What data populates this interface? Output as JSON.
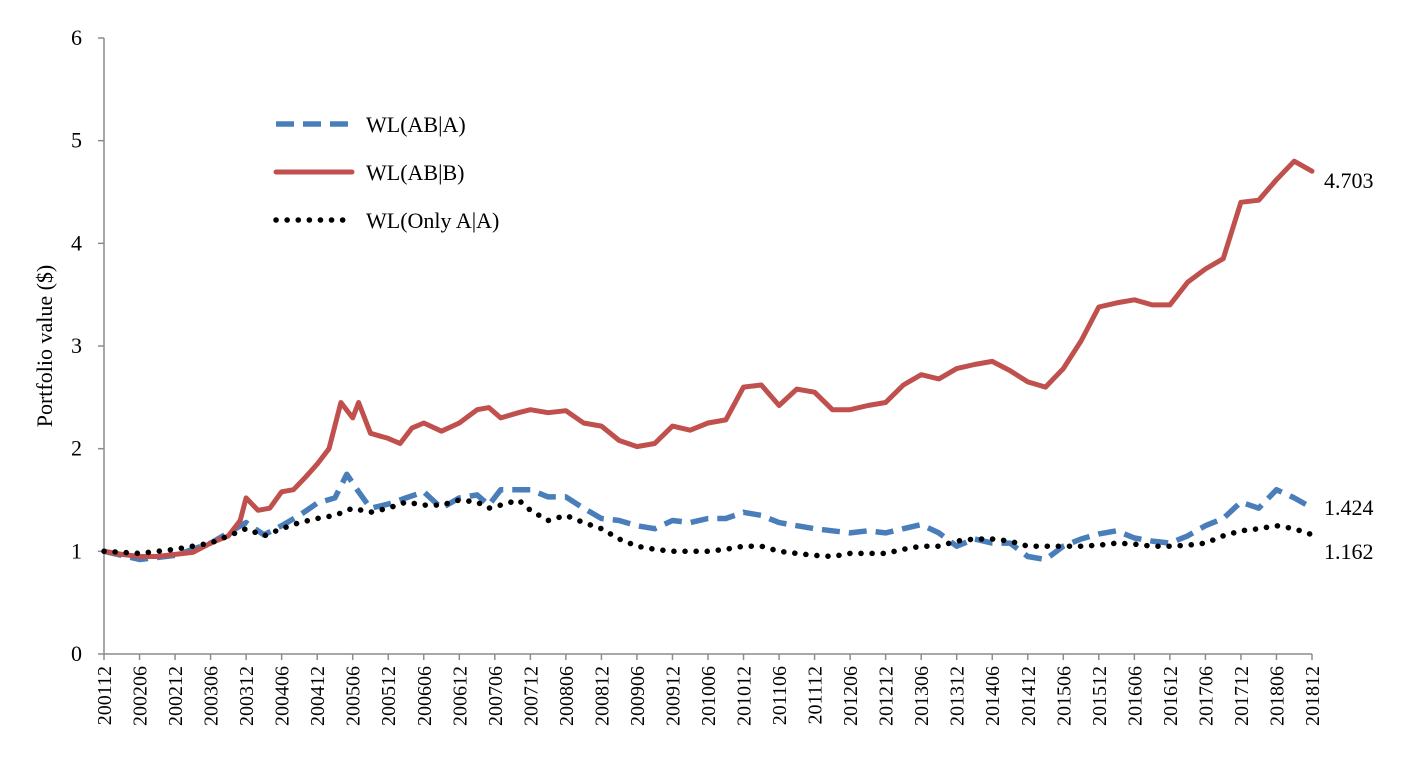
{
  "chart_data": {
    "type": "line",
    "ylabel": "Portfolio value ($)",
    "ylim": [
      0,
      6
    ],
    "yticks": [
      0,
      1,
      2,
      3,
      4,
      5,
      6
    ],
    "x_start": "200112",
    "x_end": "201812",
    "xticks": [
      "200112",
      "200206",
      "200212",
      "200306",
      "200312",
      "200406",
      "200412",
      "200506",
      "200512",
      "200606",
      "200612",
      "200706",
      "200712",
      "200806",
      "200812",
      "200906",
      "200912",
      "201006",
      "201012",
      "201106",
      "201112",
      "201206",
      "201212",
      "201306",
      "201312",
      "201406",
      "201412",
      "201506",
      "201512",
      "201606",
      "201612",
      "201706",
      "201712",
      "201806",
      "201812"
    ],
    "grid": false,
    "legend_position": "top-left",
    "series": [
      {
        "name": "WL(AB|A)",
        "color": "#4A7EBB",
        "style": "dashed",
        "end_label": "1.424",
        "points": [
          [
            "200112",
            1.0
          ],
          [
            "200206",
            0.92
          ],
          [
            "200212",
            0.96
          ],
          [
            "200306",
            1.08
          ],
          [
            "200312",
            1.28
          ],
          [
            "200403",
            1.16
          ],
          [
            "200406",
            1.25
          ],
          [
            "200409",
            1.35
          ],
          [
            "200412",
            1.47
          ],
          [
            "200503",
            1.52
          ],
          [
            "200505",
            1.75
          ],
          [
            "200507",
            1.58
          ],
          [
            "200509",
            1.42
          ],
          [
            "200512",
            1.46
          ],
          [
            "200603",
            1.52
          ],
          [
            "200606",
            1.58
          ],
          [
            "200609",
            1.42
          ],
          [
            "200612",
            1.52
          ],
          [
            "200703",
            1.55
          ],
          [
            "200705",
            1.45
          ],
          [
            "200707",
            1.6
          ],
          [
            "200709",
            1.6
          ],
          [
            "200712",
            1.6
          ],
          [
            "200803",
            1.53
          ],
          [
            "200806",
            1.53
          ],
          [
            "200809",
            1.42
          ],
          [
            "200812",
            1.32
          ],
          [
            "200903",
            1.3
          ],
          [
            "200906",
            1.25
          ],
          [
            "200909",
            1.22
          ],
          [
            "200912",
            1.3
          ],
          [
            "201003",
            1.28
          ],
          [
            "201006",
            1.32
          ],
          [
            "201009",
            1.32
          ],
          [
            "201012",
            1.38
          ],
          [
            "201103",
            1.35
          ],
          [
            "201106",
            1.28
          ],
          [
            "201109",
            1.25
          ],
          [
            "201112",
            1.22
          ],
          [
            "201203",
            1.2
          ],
          [
            "201206",
            1.18
          ],
          [
            "201209",
            1.2
          ],
          [
            "201212",
            1.18
          ],
          [
            "201303",
            1.22
          ],
          [
            "201306",
            1.26
          ],
          [
            "201309",
            1.18
          ],
          [
            "201312",
            1.05
          ],
          [
            "201403",
            1.12
          ],
          [
            "201406",
            1.08
          ],
          [
            "201409",
            1.08
          ],
          [
            "201412",
            0.95
          ],
          [
            "201503",
            0.92
          ],
          [
            "201506",
            1.05
          ],
          [
            "201509",
            1.12
          ],
          [
            "201512",
            1.17
          ],
          [
            "201603",
            1.2
          ],
          [
            "201606",
            1.13
          ],
          [
            "201609",
            1.1
          ],
          [
            "201612",
            1.08
          ],
          [
            "201703",
            1.15
          ],
          [
            "201706",
            1.25
          ],
          [
            "201709",
            1.32
          ],
          [
            "201712",
            1.48
          ],
          [
            "201803",
            1.42
          ],
          [
            "201806",
            1.6
          ],
          [
            "201809",
            1.52
          ],
          [
            "201812",
            1.424
          ]
        ]
      },
      {
        "name": "WL(AB|B)",
        "color": "#C0504D",
        "style": "solid",
        "end_label": "4.703",
        "points": [
          [
            "200112",
            1.0
          ],
          [
            "200203",
            0.97
          ],
          [
            "200206",
            0.95
          ],
          [
            "200209",
            0.95
          ],
          [
            "200212",
            0.97
          ],
          [
            "200303",
            0.99
          ],
          [
            "200306",
            1.08
          ],
          [
            "200309",
            1.15
          ],
          [
            "200311",
            1.3
          ],
          [
            "200312",
            1.52
          ],
          [
            "200402",
            1.4
          ],
          [
            "200404",
            1.42
          ],
          [
            "200406",
            1.58
          ],
          [
            "200408",
            1.6
          ],
          [
            "200410",
            1.72
          ],
          [
            "200412",
            1.85
          ],
          [
            "200502",
            2.0
          ],
          [
            "200504",
            2.45
          ],
          [
            "200506",
            2.3
          ],
          [
            "200507",
            2.45
          ],
          [
            "200509",
            2.15
          ],
          [
            "200512",
            2.1
          ],
          [
            "200602",
            2.05
          ],
          [
            "200604",
            2.2
          ],
          [
            "200606",
            2.25
          ],
          [
            "200609",
            2.17
          ],
          [
            "200612",
            2.25
          ],
          [
            "200703",
            2.38
          ],
          [
            "200705",
            2.4
          ],
          [
            "200707",
            2.3
          ],
          [
            "200710",
            2.35
          ],
          [
            "200712",
            2.38
          ],
          [
            "200803",
            2.35
          ],
          [
            "200806",
            2.37
          ],
          [
            "200809",
            2.25
          ],
          [
            "200812",
            2.22
          ],
          [
            "200903",
            2.08
          ],
          [
            "200906",
            2.02
          ],
          [
            "200909",
            2.05
          ],
          [
            "200912",
            2.22
          ],
          [
            "201003",
            2.18
          ],
          [
            "201006",
            2.25
          ],
          [
            "201009",
            2.28
          ],
          [
            "201012",
            2.6
          ],
          [
            "201103",
            2.62
          ],
          [
            "201106",
            2.42
          ],
          [
            "201109",
            2.58
          ],
          [
            "201112",
            2.55
          ],
          [
            "201203",
            2.38
          ],
          [
            "201206",
            2.38
          ],
          [
            "201209",
            2.42
          ],
          [
            "201212",
            2.45
          ],
          [
            "201303",
            2.62
          ],
          [
            "201306",
            2.72
          ],
          [
            "201309",
            2.68
          ],
          [
            "201312",
            2.78
          ],
          [
            "201403",
            2.82
          ],
          [
            "201406",
            2.85
          ],
          [
            "201409",
            2.76
          ],
          [
            "201412",
            2.65
          ],
          [
            "201503",
            2.6
          ],
          [
            "201506",
            2.78
          ],
          [
            "201509",
            3.05
          ],
          [
            "201512",
            3.38
          ],
          [
            "201603",
            3.42
          ],
          [
            "201606",
            3.45
          ],
          [
            "201609",
            3.4
          ],
          [
            "201612",
            3.4
          ],
          [
            "201703",
            3.62
          ],
          [
            "201706",
            3.75
          ],
          [
            "201709",
            3.85
          ],
          [
            "201712",
            4.4
          ],
          [
            "201803",
            4.42
          ],
          [
            "201806",
            4.62
          ],
          [
            "201809",
            4.8
          ],
          [
            "201812",
            4.703
          ]
        ]
      },
      {
        "name": "WL(Only A|A)",
        "color": "#000000",
        "style": "dotted",
        "end_label": "1.162",
        "points": [
          [
            "200112",
            1.0
          ],
          [
            "200206",
            0.98
          ],
          [
            "200212",
            1.02
          ],
          [
            "200306",
            1.08
          ],
          [
            "200312",
            1.22
          ],
          [
            "200403",
            1.15
          ],
          [
            "200406",
            1.22
          ],
          [
            "200409",
            1.28
          ],
          [
            "200412",
            1.32
          ],
          [
            "200503",
            1.35
          ],
          [
            "200506",
            1.42
          ],
          [
            "200509",
            1.38
          ],
          [
            "200512",
            1.42
          ],
          [
            "200603",
            1.48
          ],
          [
            "200606",
            1.45
          ],
          [
            "200609",
            1.45
          ],
          [
            "200612",
            1.5
          ],
          [
            "200703",
            1.48
          ],
          [
            "200705",
            1.42
          ],
          [
            "200707",
            1.45
          ],
          [
            "200710",
            1.5
          ],
          [
            "200712",
            1.4
          ],
          [
            "200803",
            1.3
          ],
          [
            "200806",
            1.35
          ],
          [
            "200809",
            1.28
          ],
          [
            "200812",
            1.22
          ],
          [
            "200903",
            1.12
          ],
          [
            "200906",
            1.05
          ],
          [
            "200909",
            1.02
          ],
          [
            "200912",
            1.0
          ],
          [
            "201003",
            1.0
          ],
          [
            "201006",
            1.0
          ],
          [
            "201009",
            1.02
          ],
          [
            "201012",
            1.05
          ],
          [
            "201103",
            1.05
          ],
          [
            "201106",
            1.0
          ],
          [
            "201109",
            0.98
          ],
          [
            "201112",
            0.96
          ],
          [
            "201203",
            0.95
          ],
          [
            "201206",
            0.98
          ],
          [
            "201209",
            0.98
          ],
          [
            "201212",
            0.98
          ],
          [
            "201303",
            1.02
          ],
          [
            "201306",
            1.05
          ],
          [
            "201309",
            1.05
          ],
          [
            "201312",
            1.1
          ],
          [
            "201403",
            1.12
          ],
          [
            "201406",
            1.12
          ],
          [
            "201409",
            1.1
          ],
          [
            "201412",
            1.05
          ],
          [
            "201503",
            1.05
          ],
          [
            "201506",
            1.05
          ],
          [
            "201509",
            1.05
          ],
          [
            "201512",
            1.06
          ],
          [
            "201603",
            1.08
          ],
          [
            "201606",
            1.07
          ],
          [
            "201609",
            1.05
          ],
          [
            "201612",
            1.05
          ],
          [
            "201703",
            1.06
          ],
          [
            "201706",
            1.08
          ],
          [
            "201709",
            1.15
          ],
          [
            "201712",
            1.2
          ],
          [
            "201803",
            1.22
          ],
          [
            "201806",
            1.25
          ],
          [
            "201809",
            1.22
          ],
          [
            "201812",
            1.162
          ]
        ]
      }
    ]
  }
}
